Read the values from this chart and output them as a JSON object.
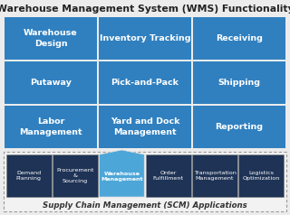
{
  "title": "Warehouse Management System (WMS) Functionality",
  "bg_color": "#ececec",
  "main_grid_color": "#3080c0",
  "main_grid_border": "#ffffff",
  "main_cells": [
    [
      "Warehouse\nDesign",
      "Inventory Tracking",
      "Receiving"
    ],
    [
      "Putaway",
      "Pick-and-Pack",
      "Shipping"
    ],
    [
      "Labor\nManagement",
      "Yard and Dock\nManagement",
      "Reporting"
    ]
  ],
  "scm_dark_color": "#1e3355",
  "scm_highlight_color": "#4da6d8",
  "scm_cells": [
    "Demand\nPlanning",
    "Procurement\n&\nSourcing",
    "Warehouse\nManagement",
    "Order\nFulfillment",
    "Transportation\nManagement",
    "Logistics\nOptimization"
  ],
  "scm_label": "Supply Chain Management (SCM) Applications",
  "title_fontsize": 7.8,
  "main_fontsize": 6.8,
  "scm_fontsize": 4.6,
  "scm_label_fontsize": 6.2
}
